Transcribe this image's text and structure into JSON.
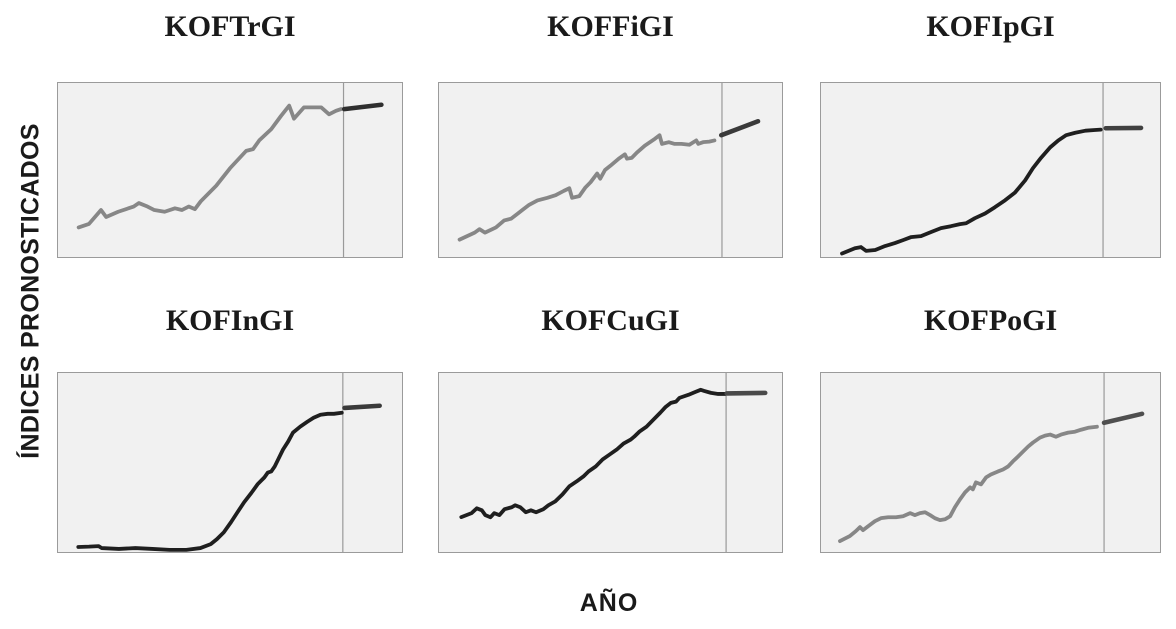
{
  "figure": {
    "ylabel": "ÍNDICES PRONOSTICADOS",
    "xlabel": "AÑO"
  },
  "colors": {
    "panel_bg": "#f1f1f1",
    "panel_border": "#9b9b9b",
    "divider": "#9a9a9a",
    "text": "#1a1a1a",
    "gray_series": "#878787",
    "black_series": "#1f1f1f"
  },
  "chart_data": [
    {
      "type": "line",
      "title": "KOFTrGI",
      "coords": "percent of panel: x 0=left 100=right, y 0=bottom 100=top",
      "grid": false,
      "divider_x_pct": 83.0,
      "series": [
        {
          "name": "historical",
          "color": "#878787",
          "points_pct": [
            [
              6,
              17
            ],
            [
              9,
              19
            ],
            [
              12.5,
              27
            ],
            [
              14,
              23
            ],
            [
              17.5,
              26
            ],
            [
              22,
              29
            ],
            [
              23.5,
              31
            ],
            [
              26,
              29
            ],
            [
              28,
              27
            ],
            [
              31,
              26
            ],
            [
              34,
              28
            ],
            [
              36,
              27
            ],
            [
              38,
              29
            ],
            [
              39.8,
              27.5
            ],
            [
              41.5,
              32
            ],
            [
              46,
              41
            ],
            [
              50,
              51
            ],
            [
              54.7,
              61
            ],
            [
              56.7,
              62
            ],
            [
              58.5,
              67
            ],
            [
              62,
              73.5
            ],
            [
              64.8,
              81
            ],
            [
              67.2,
              87
            ],
            [
              68.6,
              79.5
            ],
            [
              71.5,
              86
            ],
            [
              76.5,
              86
            ],
            [
              78.8,
              82
            ],
            [
              80.8,
              84
            ],
            [
              82.3,
              85
            ]
          ]
        },
        {
          "name": "forecast",
          "color": "#2f2f2f",
          "points_pct": [
            [
              83.2,
              85
            ],
            [
              94,
              87.5
            ]
          ]
        }
      ]
    },
    {
      "type": "line",
      "title": "KOFFiGI",
      "coords": "percent of panel: x 0=left 100=right, y 0=bottom 100=top",
      "grid": false,
      "divider_x_pct": 82.5,
      "series": [
        {
          "name": "historical",
          "color": "#878787",
          "points_pct": [
            [
              6,
              10
            ],
            [
              10.4,
              14
            ],
            [
              11.8,
              16
            ],
            [
              13.4,
              14
            ],
            [
              16.6,
              17
            ],
            [
              19,
              21
            ],
            [
              21,
              22
            ],
            [
              23,
              25
            ],
            [
              24.3,
              27
            ],
            [
              26.3,
              30
            ],
            [
              28.7,
              32.5
            ],
            [
              31.6,
              34
            ],
            [
              34,
              35.5
            ],
            [
              36.4,
              38
            ],
            [
              38,
              39.5
            ],
            [
              38.8,
              34
            ],
            [
              40.9,
              35
            ],
            [
              42.7,
              40
            ],
            [
              44.2,
              43
            ],
            [
              46.1,
              48
            ],
            [
              47,
              45
            ],
            [
              48.4,
              50
            ],
            [
              50,
              52.5
            ],
            [
              52.4,
              56.5
            ],
            [
              54.2,
              59
            ],
            [
              54.8,
              56.5
            ],
            [
              56.2,
              57
            ],
            [
              57.7,
              60
            ],
            [
              60,
              64
            ],
            [
              63,
              68
            ],
            [
              64.3,
              70
            ],
            [
              65,
              65
            ],
            [
              67,
              66
            ],
            [
              68.7,
              65
            ],
            [
              70.7,
              65
            ],
            [
              73,
              64.5
            ],
            [
              75,
              67
            ],
            [
              75.6,
              65
            ],
            [
              77,
              66
            ],
            [
              78.8,
              66.3
            ],
            [
              80.3,
              67
            ]
          ]
        },
        {
          "name": "forecast",
          "color": "#3a3a3a",
          "points_pct": [
            [
              82.3,
              70
            ],
            [
              93,
              78
            ]
          ]
        }
      ]
    },
    {
      "type": "line",
      "title": "KOFIpGI",
      "coords": "percent of panel: x 0=left 100=right, y 0=bottom 100=top",
      "grid": false,
      "divider_x_pct": 83.2,
      "series": [
        {
          "name": "historical",
          "color": "#1f1f1f",
          "points_pct": [
            [
              6.2,
              2
            ],
            [
              10,
              5
            ],
            [
              11.8,
              5.7
            ],
            [
              13.3,
              3.5
            ],
            [
              16,
              4
            ],
            [
              18.9,
              6.3
            ],
            [
              21.8,
              8
            ],
            [
              24.2,
              9.7
            ],
            [
              26.5,
              11.4
            ],
            [
              29.5,
              12
            ],
            [
              32.4,
              14.3
            ],
            [
              35.4,
              16.6
            ],
            [
              38.3,
              17.7
            ],
            [
              41,
              18.9
            ],
            [
              42.8,
              19.4
            ],
            [
              45.4,
              22.3
            ],
            [
              48.4,
              25
            ],
            [
              51.3,
              28.6
            ],
            [
              54.3,
              32.6
            ],
            [
              57.2,
              37
            ],
            [
              60.2,
              44
            ],
            [
              62.5,
              51
            ],
            [
              64.9,
              57
            ],
            [
              67.6,
              63
            ],
            [
              70,
              67
            ],
            [
              72.3,
              70
            ],
            [
              75,
              71.4
            ],
            [
              78,
              72.6
            ],
            [
              80.8,
              73
            ],
            [
              82.5,
              73.2
            ]
          ]
        },
        {
          "name": "forecast",
          "color": "#404040",
          "points_pct": [
            [
              84,
              74
            ],
            [
              94.4,
              74.2
            ]
          ]
        }
      ]
    },
    {
      "type": "line",
      "title": "KOFInGI",
      "coords": "percent of panel: x 0=left 100=right, y 0=bottom 100=top",
      "grid": false,
      "divider_x_pct": 82.8,
      "series": [
        {
          "name": "historical",
          "color": "#1f1f1f",
          "points_pct": [
            [
              5.9,
              2.8
            ],
            [
              9,
              3
            ],
            [
              11.8,
              3.3
            ],
            [
              12.7,
              2.2
            ],
            [
              17.7,
              1.7
            ],
            [
              22.5,
              2.2
            ],
            [
              27.5,
              1.7
            ],
            [
              32.5,
              1.2
            ],
            [
              37.3,
              1.2
            ],
            [
              41.4,
              2.2
            ],
            [
              44.4,
              4.4
            ],
            [
              46.2,
              7.2
            ],
            [
              48.2,
              11
            ],
            [
              50.3,
              16.7
            ],
            [
              52.1,
              22
            ],
            [
              54.1,
              27.8
            ],
            [
              56.2,
              33
            ],
            [
              58,
              37.8
            ],
            [
              60,
              41.7
            ],
            [
              61,
              44.4
            ],
            [
              62,
              45
            ],
            [
              63,
              47.8
            ],
            [
              64,
              51.7
            ],
            [
              65.4,
              57.2
            ],
            [
              66.9,
              61.7
            ],
            [
              68.3,
              66.7
            ],
            [
              70.4,
              70
            ],
            [
              72.5,
              72.8
            ],
            [
              74.3,
              75
            ],
            [
              76.3,
              76.7
            ],
            [
              78.4,
              77.2
            ],
            [
              80.2,
              77.2
            ],
            [
              82.5,
              77.8
            ]
          ]
        },
        {
          "name": "forecast",
          "color": "#3a3a3a",
          "points_pct": [
            [
              83.3,
              80.5
            ],
            [
              93.5,
              81.7
            ]
          ]
        }
      ]
    },
    {
      "type": "line",
      "title": "KOFCuGI",
      "coords": "percent of panel: x 0=left 100=right, y 0=bottom 100=top",
      "grid": false,
      "divider_x_pct": 83.7,
      "series": [
        {
          "name": "historical",
          "color": "#1f1f1f",
          "points_pct": [
            [
              6.5,
              19.5
            ],
            [
              9.5,
              21.7
            ],
            [
              11,
              24.4
            ],
            [
              12.5,
              23.3
            ],
            [
              13.5,
              20.6
            ],
            [
              15,
              19.4
            ],
            [
              16.1,
              21.7
            ],
            [
              17.6,
              20.6
            ],
            [
              19.1,
              23.9
            ],
            [
              21.2,
              25
            ],
            [
              22.2,
              26.1
            ],
            [
              23.7,
              25
            ],
            [
              25.3,
              22.2
            ],
            [
              26.8,
              23.3
            ],
            [
              28.3,
              22.2
            ],
            [
              30.4,
              23.9
            ],
            [
              31.9,
              26.1
            ],
            [
              33.9,
              28.3
            ],
            [
              36,
              32.2
            ],
            [
              38,
              36.7
            ],
            [
              40.1,
              39.4
            ],
            [
              42.1,
              42.2
            ],
            [
              43.6,
              45
            ],
            [
              45.7,
              47.8
            ],
            [
              47.7,
              51.7
            ],
            [
              49.7,
              54.4
            ],
            [
              51.8,
              57.2
            ],
            [
              53.8,
              60.6
            ],
            [
              55.9,
              62.8
            ],
            [
              56.9,
              64.4
            ],
            [
              58.4,
              67.2
            ],
            [
              60.5,
              70
            ],
            [
              62.5,
              73.9
            ],
            [
              64.5,
              77.8
            ],
            [
              66.1,
              81.1
            ],
            [
              67.6,
              83.3
            ],
            [
              69.1,
              84
            ],
            [
              70.1,
              86.1
            ],
            [
              72.7,
              87.8
            ],
            [
              74.7,
              89.4
            ],
            [
              76.3,
              90.6
            ],
            [
              77.3,
              90
            ],
            [
              79.3,
              88.9
            ],
            [
              81.4,
              88.3
            ],
            [
              83.4,
              88.3
            ]
          ]
        },
        {
          "name": "forecast",
          "color": "#4a4a4a",
          "points_pct": [
            [
              83.9,
              88.6
            ],
            [
              95.1,
              88.9
            ]
          ]
        }
      ]
    },
    {
      "type": "line",
      "title": "KOFPoGI",
      "coords": "percent of panel: x 0=left 100=right, y 0=bottom 100=top",
      "grid": false,
      "divider_x_pct": 83.5,
      "series": [
        {
          "name": "historical",
          "color": "#878787",
          "points_pct": [
            [
              5.6,
              6.1
            ],
            [
              8.5,
              8.9
            ],
            [
              10.3,
              11.7
            ],
            [
              11.5,
              13.9
            ],
            [
              12.4,
              12.2
            ],
            [
              13.9,
              14.4
            ],
            [
              15.9,
              17.2
            ],
            [
              17.7,
              18.9
            ],
            [
              19.8,
              19.4
            ],
            [
              22.1,
              19.4
            ],
            [
              24.2,
              20
            ],
            [
              26.3,
              21.7
            ],
            [
              27.7,
              20.6
            ],
            [
              29.2,
              21.7
            ],
            [
              30.7,
              22.2
            ],
            [
              32.2,
              20.6
            ],
            [
              33.6,
              18.9
            ],
            [
              35.1,
              17.8
            ],
            [
              36.6,
              18.3
            ],
            [
              38.1,
              20
            ],
            [
              39.5,
              25
            ],
            [
              41,
              29.4
            ],
            [
              42.5,
              33.3
            ],
            [
              44,
              36.1
            ],
            [
              44.8,
              35
            ],
            [
              45.7,
              38.9
            ],
            [
              47.2,
              37.8
            ],
            [
              48.7,
              41.7
            ],
            [
              50.1,
              43.3
            ],
            [
              52.2,
              45
            ],
            [
              53.7,
              46.1
            ],
            [
              55.2,
              47.8
            ],
            [
              56.6,
              50.6
            ],
            [
              58.1,
              53.3
            ],
            [
              59.6,
              56.1
            ],
            [
              61.1,
              58.9
            ],
            [
              62.5,
              61.1
            ],
            [
              64.6,
              63.9
            ],
            [
              66.1,
              65
            ],
            [
              67.6,
              65.6
            ],
            [
              69.3,
              64.4
            ],
            [
              70.8,
              65.6
            ],
            [
              72.9,
              66.7
            ],
            [
              74.9,
              67.2
            ],
            [
              76.7,
              68.3
            ],
            [
              78.8,
              69.4
            ],
            [
              81.4,
              70
            ]
          ]
        },
        {
          "name": "forecast",
          "color": "#4f4f4f",
          "points_pct": [
            [
              83.5,
              72.2
            ],
            [
              94.7,
              77.2
            ]
          ]
        }
      ]
    }
  ]
}
